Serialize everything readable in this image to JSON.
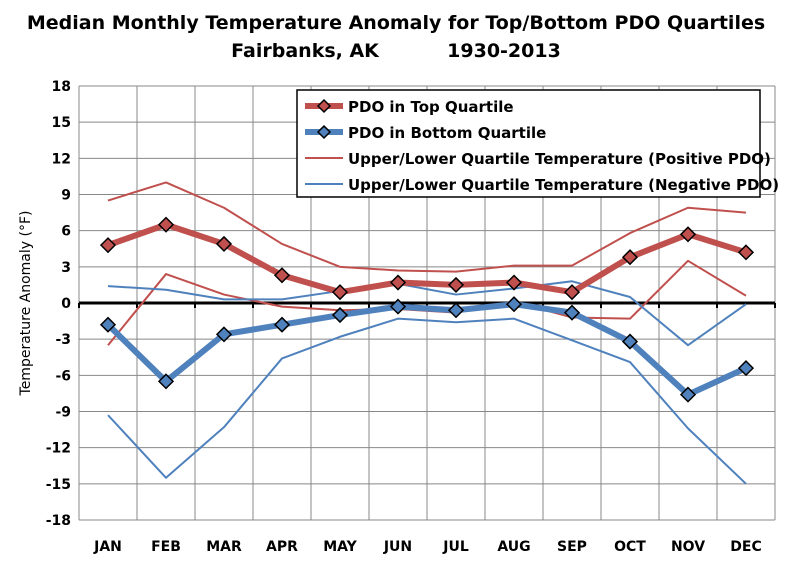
{
  "chart_data": {
    "type": "line",
    "title": "Median Monthly Temperature Anomaly for Top/Bottom PDO Quartiles",
    "subtitle_location": "Fairbanks, AK",
    "subtitle_years": "1930-2013",
    "xlabel": "",
    "ylabel": "Temperature Anomaly (°F)",
    "ylim": [
      -18,
      18
    ],
    "yticks": [
      18,
      15,
      12,
      9,
      6,
      3,
      0,
      -3,
      -6,
      -9,
      -12,
      -15,
      -18
    ],
    "grid": true,
    "legend_position": "top-right",
    "categories": [
      "JAN",
      "FEB",
      "MAR",
      "APR",
      "MAY",
      "JUN",
      "JUL",
      "AUG",
      "SEP",
      "OCT",
      "NOV",
      "DEC"
    ],
    "series": [
      {
        "name": "PDO in Top Quartile",
        "color": "#C0504D",
        "style": "thick-marker",
        "values": [
          4.8,
          6.5,
          4.9,
          2.3,
          0.9,
          1.7,
          1.5,
          1.7,
          0.9,
          3.8,
          5.7,
          4.2
        ]
      },
      {
        "name": "PDO in Bottom Quartile",
        "color": "#4F81BD",
        "style": "thick-marker",
        "values": [
          -1.8,
          -6.5,
          -2.6,
          -1.8,
          -1.0,
          -0.3,
          -0.6,
          -0.1,
          -0.8,
          -3.2,
          -7.6,
          -5.4
        ]
      },
      {
        "name": "Upper/Lower Quartile Temperature (Positive PDO)",
        "color": "#C0504D",
        "style": "thin",
        "values": [
          8.5,
          10.0,
          7.9,
          4.9,
          3.0,
          2.7,
          2.6,
          3.1,
          3.1,
          5.8,
          7.9,
          7.5
        ]
      },
      {
        "name": "",
        "color": "#C0504D",
        "style": "thin",
        "values": [
          -3.5,
          2.4,
          0.7,
          -0.3,
          -0.6,
          -0.5,
          -0.8,
          0.1,
          -1.2,
          -1.3,
          3.5,
          0.6
        ]
      },
      {
        "name": "Upper/Lower Quartile Temperature (Negative PDO)",
        "color": "#4F81BD",
        "style": "thin",
        "values": [
          1.4,
          1.1,
          0.3,
          0.3,
          1.0,
          1.6,
          0.7,
          1.2,
          1.8,
          0.5,
          -3.5,
          -0.1
        ]
      },
      {
        "name": "",
        "color": "#4F81BD",
        "style": "thin",
        "values": [
          -9.3,
          -14.5,
          -10.3,
          -4.6,
          -2.8,
          -1.3,
          -1.6,
          -1.3,
          -3.1,
          -4.9,
          -10.4,
          -15.0
        ]
      }
    ]
  }
}
